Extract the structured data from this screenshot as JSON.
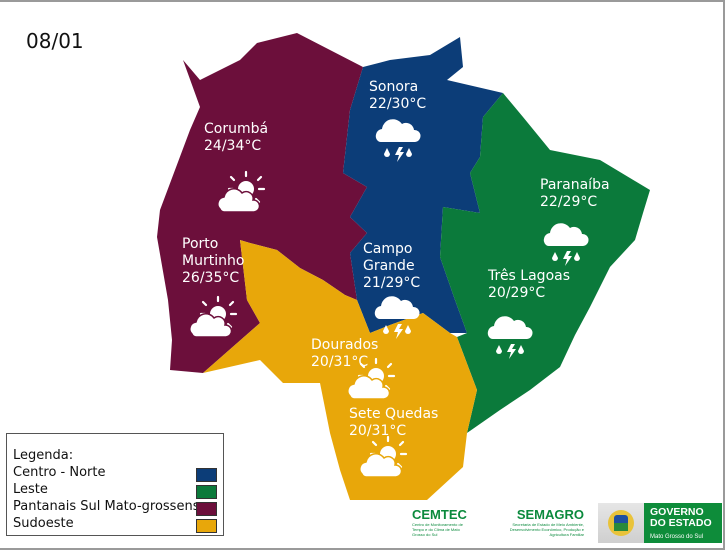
{
  "date": "08/01",
  "colors": {
    "centro_norte": "#0c3d78",
    "leste": "#0b7a3b",
    "pantanais": "#6c0f3b",
    "sudoeste": "#e8a70a"
  },
  "cities": [
    {
      "name": "Corumbá",
      "temp": "24/34°C",
      "icon": "sun-cloud-icon"
    },
    {
      "name": "Sonora",
      "temp": "22/30°C",
      "icon": "thunderstorm-icon"
    },
    {
      "name": "Paranaíba",
      "temp": "22/29°C",
      "icon": "thunderstorm-icon"
    },
    {
      "name": "Porto",
      "name2": "Murtinho",
      "temp": "26/35°C",
      "icon": "sun-cloud-icon"
    },
    {
      "name": "Campo",
      "name2": "Grande",
      "temp": "21/29°C",
      "icon": "thunderstorm-icon"
    },
    {
      "name": "Três Lagoas",
      "temp": "20/29°C",
      "icon": "thunderstorm-icon"
    },
    {
      "name": "Dourados",
      "temp": "20/31°C",
      "icon": "sun-cloud-icon"
    },
    {
      "name": "Sete Quedas",
      "temp": "20/31°C",
      "icon": "sun-cloud-icon"
    }
  ],
  "legend": {
    "title": "Legenda:",
    "items": [
      {
        "label": "Centro - Norte",
        "color": "#0c3d78"
      },
      {
        "label": "Leste",
        "color": "#0b7a3b"
      },
      {
        "label": "Pantanais Sul Mato-grossense",
        "color": "#6c0f3b"
      },
      {
        "label": "Sudoeste",
        "color": "#e8a70a"
      }
    ]
  },
  "logos": {
    "cemtec": "CEMTEC",
    "cemtec_sub": "Centro de Monitoramento de Tempo e do Clima de Mato Grosso do Sul",
    "semagro": "SEMAGRO",
    "semagro_sub": "Secretaria de Estado de Meio Ambiente, Desenvolvimento Econômico, Produção e Agricultura Familiar",
    "gov_line1": "GOVERNO",
    "gov_line2": "DO ESTADO",
    "gov_sub": "Mato Grosso do Sul"
  }
}
